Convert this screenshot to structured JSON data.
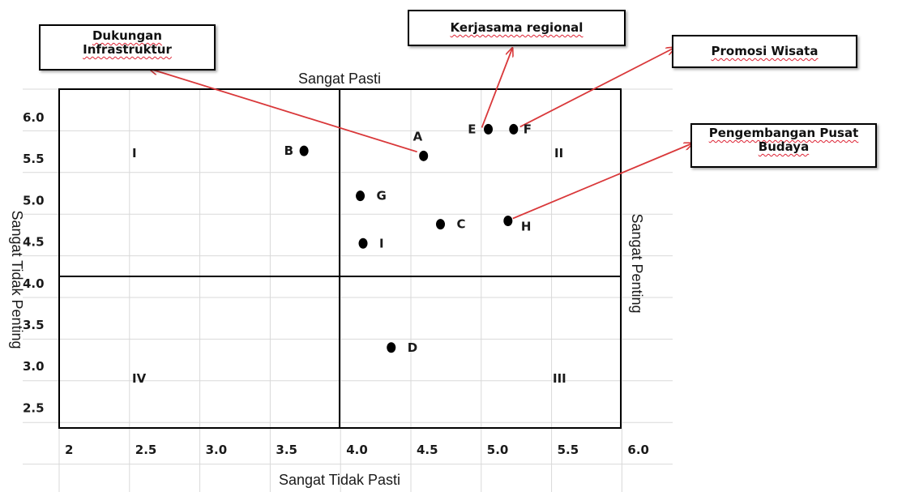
{
  "chart_data": {
    "type": "scatter",
    "title": "",
    "xlabel": "Sangat Tidak Pasti",
    "x_top_label": "Sangat Pasti",
    "ylabel": "Sangat Tidak Penting",
    "y_right_label": "Sangat Penting",
    "x_ticks": [
      "2",
      "2.5",
      "3.0",
      "3.5",
      "4.0",
      "4.5",
      "5.0",
      "5.5",
      "6.0"
    ],
    "y_ticks": [
      "6.0",
      "5.5",
      "5.0",
      "4.5",
      "4.0",
      "3.5",
      "3.0",
      "2.5"
    ],
    "quadrants": [
      "I",
      "II",
      "III",
      "IV"
    ],
    "grid": true,
    "points": [
      {
        "label": "A",
        "x": 4.55,
        "y": 5.53
      },
      {
        "label": "B",
        "x": 3.7,
        "y": 5.59
      },
      {
        "label": "C",
        "x": 4.67,
        "y": 4.71
      },
      {
        "label": "D",
        "x": 4.32,
        "y": 3.23
      },
      {
        "label": "E",
        "x": 5.01,
        "y": 5.85
      },
      {
        "label": "F",
        "x": 5.19,
        "y": 5.85
      },
      {
        "label": "G",
        "x": 4.1,
        "y": 5.05
      },
      {
        "label": "H",
        "x": 5.15,
        "y": 4.75
      },
      {
        "label": "I",
        "x": 4.12,
        "y": 4.48
      }
    ],
    "annotations": [
      {
        "text": "Dukungan\nInfrastruktur",
        "target": "A"
      },
      {
        "text": "Kerjasama regional",
        "target": "E"
      },
      {
        "text": "Promosi Wisata",
        "target": "F"
      },
      {
        "text": "Pengembangan Pusat\nBudaya",
        "target": "H"
      }
    ],
    "colors": {
      "points": "#000000",
      "arrows": "#d9383a",
      "grid": "#d9d9d9",
      "frame": "#000000"
    }
  }
}
